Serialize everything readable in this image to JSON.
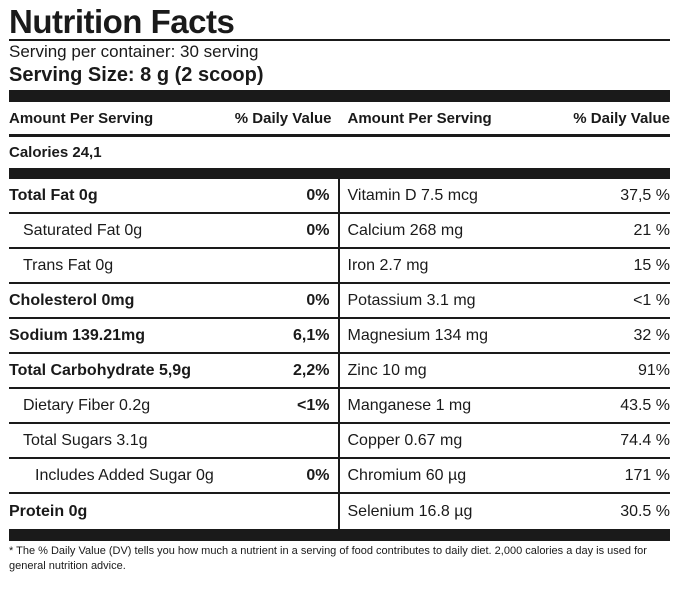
{
  "title": "Nutrition Facts",
  "servings_per_container": "Serving per container: 30 serving",
  "serving_size": "Serving Size: 8 g (2 scoop)",
  "header": {
    "amount_left": "Amount Per Serving",
    "dv_left": "% Daily Value",
    "amount_right": "Amount Per Serving",
    "dv_right": "% Daily Value"
  },
  "calories": "Calories 24,1",
  "left_rows": [
    {
      "name": "Total Fat 0g",
      "pct": "0%"
    },
    {
      "name": "Saturated Fat 0g",
      "pct": "0%"
    },
    {
      "name": "Trans Fat 0g",
      "pct": ""
    },
    {
      "name": "Cholesterol 0mg",
      "pct": "0%"
    },
    {
      "name": "Sodium 139.21mg",
      "pct": "6,1%"
    },
    {
      "name": "Total Carbohydrate 5,9g",
      "pct": "2,2%"
    },
    {
      "name": "Dietary Fiber 0.2g",
      "pct": "<1%"
    },
    {
      "name": "Total Sugars 3.1g",
      "pct": ""
    },
    {
      "name": "Includes Added Sugar 0g",
      "pct": "0%"
    },
    {
      "name": "Protein 0g",
      "pct": ""
    }
  ],
  "right_rows": [
    {
      "name": "Vitamin D 7.5 mcg",
      "pct": "37,5 %"
    },
    {
      "name": "Calcium 268 mg",
      "pct": "21 %"
    },
    {
      "name": "Iron 2.7 mg",
      "pct": "15 %"
    },
    {
      "name": "Potassium 3.1 mg",
      "pct": "<1 %"
    },
    {
      "name": "Magnesium 134 mg",
      "pct": "32 %"
    },
    {
      "name": "Zinc 10 mg",
      "pct": "91%"
    },
    {
      "name": "Manganese 1 mg",
      "pct": "43.5 %"
    },
    {
      "name": "Copper 0.67 mg",
      "pct": "74.4 %"
    },
    {
      "name": "Chromium 60 µg",
      "pct": "171 %"
    },
    {
      "name": "Selenium 16.8 µg",
      "pct": "30.5 %"
    }
  ],
  "footnote": "* The % Daily Value (DV) tells you how much a nutrient in a serving of food contributes to daily diet. 2,000 calories a day is used for general nutrition advice."
}
